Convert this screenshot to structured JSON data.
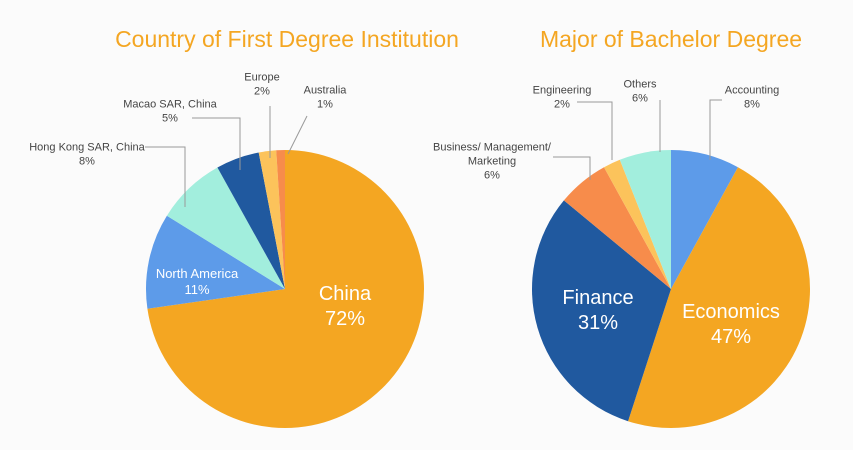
{
  "chart_data": [
    {
      "type": "pie",
      "title": "Country of First Degree Institution",
      "categories": [
        "China",
        "North America",
        "Hong Kong SAR, China",
        "Macao SAR, China",
        "Europe",
        "Australia"
      ],
      "values": [
        72,
        11,
        8,
        5,
        2,
        1
      ],
      "value_labels": [
        "72%",
        "11%",
        "8%",
        "5%",
        "2%",
        "1%"
      ],
      "colors": [
        "#f4a622",
        "#5d9be9",
        "#a2eedd",
        "#20599f",
        "#fcc35b",
        "#f78c4b"
      ]
    },
    {
      "type": "pie",
      "title": "Major of Bachelor Degree",
      "categories": [
        "Accounting",
        "Economics",
        "Finance",
        "Business/ Management/ Marketing",
        "Engineering",
        "Others"
      ],
      "values": [
        8,
        47,
        31,
        6,
        2,
        6
      ],
      "value_labels": [
        "8%",
        "47%",
        "31%",
        "6%",
        "2%",
        "6%"
      ],
      "colors": [
        "#5d9be9",
        "#f4a622",
        "#20599f",
        "#f78c4b",
        "#fcc35b",
        "#a2eedd"
      ]
    }
  ]
}
